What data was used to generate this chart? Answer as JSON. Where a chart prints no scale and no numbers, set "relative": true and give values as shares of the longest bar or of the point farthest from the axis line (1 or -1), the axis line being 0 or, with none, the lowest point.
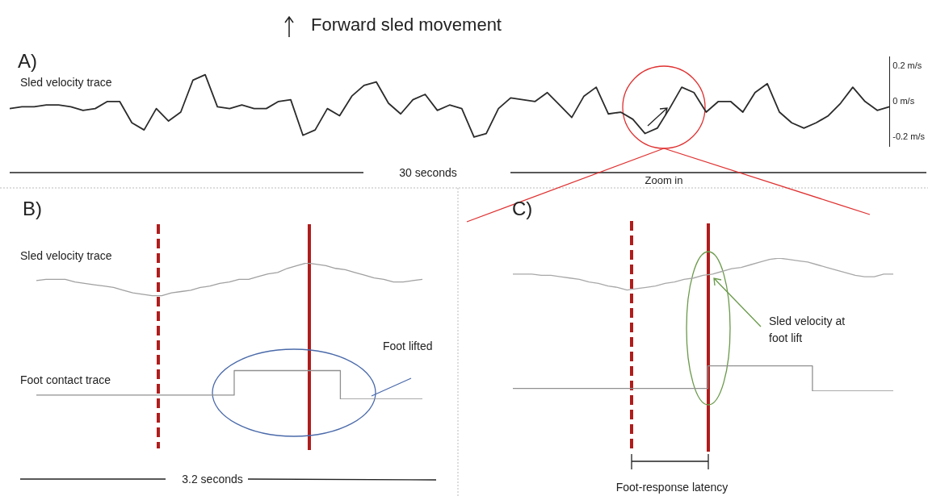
{
  "chart_data": [
    {
      "type": "line",
      "title": "Forward sled movement",
      "marker": "none",
      "annotations": [
        "A)",
        "30 seconds",
        "Zoom in"
      ],
      "categories": [
        null,
        null,
        null,
        null,
        null,
        null,
        null,
        null,
        null,
        null,
        null,
        null,
        null,
        null,
        null,
        null,
        null,
        null,
        null,
        null,
        null,
        null,
        null,
        null,
        null,
        null,
        null,
        null,
        null,
        null,
        null,
        null,
        null,
        null,
        null,
        null,
        null,
        null,
        null,
        null,
        null,
        null,
        null,
        null,
        null,
        null,
        null,
        null,
        null,
        null,
        null,
        null,
        null,
        null,
        null,
        null,
        null,
        null,
        null,
        null,
        null,
        null,
        null,
        null,
        null,
        null,
        null,
        null,
        null,
        null,
        null,
        null,
        null
      ],
      "series": [
        {
          "name": "Sled velocity trace",
          "color": "#2b2b2b",
          "values": [
            -0.04,
            -0.03,
            -0.03,
            -0.02,
            -0.02,
            -0.03,
            -0.05,
            -0.04,
            0.0,
            0.0,
            -0.12,
            -0.16,
            -0.04,
            -0.11,
            -0.06,
            0.12,
            0.15,
            -0.03,
            -0.04,
            -0.02,
            -0.04,
            -0.04,
            0.0,
            0.01,
            -0.19,
            -0.16,
            -0.04,
            -0.08,
            0.03,
            0.09,
            0.11,
            -0.01,
            -0.07,
            0.01,
            0.04,
            -0.05,
            -0.02,
            -0.04,
            -0.2,
            -0.18,
            -0.04,
            0.02,
            0.01,
            0.0,
            0.05,
            -0.02,
            -0.09,
            0.03,
            0.08,
            -0.07,
            -0.06,
            -0.1,
            -0.18,
            -0.15,
            -0.04,
            0.08,
            0.05,
            -0.06,
            0.0,
            0.0,
            -0.06,
            0.05,
            0.1,
            -0.06,
            -0.12,
            -0.15,
            -0.12,
            -0.08,
            -0.01,
            0.08,
            0.0,
            -0.05,
            -0.03
          ]
        }
      ],
      "ylim": [
        -0.25,
        0.25
      ],
      "yticks": [
        {
          "value": 0.2,
          "label": "0.2 m/s"
        },
        {
          "value": 0,
          "label": "0 m/s"
        },
        {
          "value": -0.2,
          "label": "-0.2 m/s"
        }
      ]
    },
    {
      "type": "line",
      "title": "B)",
      "relative": true,
      "marker": "none",
      "annotations": [
        "Foot lifted",
        "3.2 seconds"
      ],
      "categories": [
        null,
        null,
        null,
        null,
        null,
        null,
        null,
        null,
        null,
        null,
        null,
        null,
        null,
        null,
        null,
        null,
        null,
        null,
        null,
        null,
        null,
        null,
        null,
        null,
        null,
        null,
        null,
        null,
        null,
        null,
        null,
        null,
        null,
        null,
        null,
        null,
        null,
        null,
        null,
        null,
        null
      ],
      "series": [
        {
          "name": "Sled velocity trace",
          "color": "#a0a0a0",
          "values": [
            0.87,
            0.88,
            0.88,
            0.88,
            0.86,
            0.85,
            0.84,
            0.83,
            0.82,
            0.8,
            0.78,
            0.77,
            0.76,
            0.76,
            0.78,
            0.79,
            0.8,
            0.82,
            0.83,
            0.85,
            0.86,
            0.88,
            0.88,
            0.9,
            0.92,
            0.93,
            0.96,
            0.98,
            1.0,
            0.99,
            0.98,
            0.96,
            0.95,
            0.93,
            0.91,
            0.89,
            0.88,
            0.86,
            0.86,
            0.87,
            0.88
          ]
        },
        {
          "name": "Foot contact trace",
          "type": "step",
          "color": "#909090",
          "values": [
            0.03,
            0.03,
            0.03,
            0.03,
            0.03,
            0.03,
            0.03,
            0.03,
            0.03,
            0.03,
            0.03,
            0.03,
            0.03,
            0.03,
            0.03,
            0.03,
            0.03,
            0.03,
            0.03,
            0.03,
            0.03,
            0.21,
            0.21,
            0.21,
            0.21,
            0.21,
            0.21,
            0.21,
            0.21,
            0.21,
            0.21,
            0.21,
            0.0,
            0.0,
            0.0,
            0.0,
            0.0,
            0.0,
            0.0,
            0.0,
            0.0
          ]
        }
      ]
    },
    {
      "type": "line",
      "title": "C)",
      "relative": true,
      "marker": "none",
      "annotations": [
        "Sled velocity at foot lift",
        "Foot-response latency"
      ],
      "categories": [
        null,
        null,
        null,
        null,
        null,
        null,
        null,
        null,
        null,
        null,
        null,
        null,
        null,
        null,
        null,
        null,
        null,
        null,
        null,
        null,
        null,
        null,
        null,
        null,
        null,
        null,
        null,
        null,
        null,
        null,
        null,
        null,
        null,
        null,
        null,
        null,
        null,
        null,
        null,
        null,
        null
      ],
      "series": [
        {
          "color": "#a8a8a8",
          "values": [
            0.88,
            0.88,
            0.88,
            0.87,
            0.87,
            0.86,
            0.85,
            0.84,
            0.82,
            0.81,
            0.79,
            0.78,
            0.76,
            0.77,
            0.78,
            0.79,
            0.81,
            0.82,
            0.84,
            0.85,
            0.87,
            0.88,
            0.9,
            0.92,
            0.93,
            0.95,
            0.97,
            0.99,
            1.0,
            0.99,
            0.98,
            0.97,
            0.95,
            0.93,
            0.91,
            0.89,
            0.87,
            0.86,
            0.86,
            0.88,
            0.88
          ]
        },
        {
          "type": "step",
          "color": "#909090",
          "values": [
            0.02,
            0.02,
            0.02,
            0.02,
            0.02,
            0.02,
            0.02,
            0.02,
            0.02,
            0.02,
            0.02,
            0.02,
            0.02,
            0.02,
            0.02,
            0.02,
            0.02,
            0.02,
            0.02,
            0.02,
            0.02,
            0.19,
            0.19,
            0.19,
            0.19,
            0.19,
            0.19,
            0.19,
            0.19,
            0.19,
            0.19,
            0.19,
            0.0,
            0.0,
            0.0,
            0.0,
            0.0,
            0.0,
            0.0,
            0.0,
            0.0
          ]
        }
      ]
    }
  ]
}
